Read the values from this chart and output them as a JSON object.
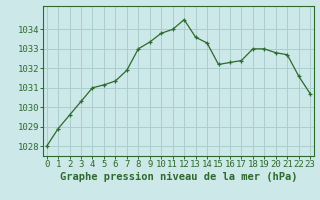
{
  "x": [
    0,
    1,
    2,
    3,
    4,
    5,
    6,
    7,
    8,
    9,
    10,
    11,
    12,
    13,
    14,
    15,
    16,
    17,
    18,
    19,
    20,
    21,
    22,
    23
  ],
  "y": [
    1028.0,
    1028.9,
    1029.6,
    1030.3,
    1031.0,
    1031.15,
    1031.35,
    1031.9,
    1033.0,
    1033.35,
    1033.8,
    1034.0,
    1034.5,
    1033.6,
    1033.3,
    1032.2,
    1032.3,
    1032.4,
    1033.0,
    1033.0,
    1032.8,
    1032.7,
    1031.6,
    1030.7
  ],
  "line_color": "#2d6a2d",
  "marker": "+",
  "bg_color": "#cce8e8",
  "grid_color": "#aacece",
  "xlabel": "Graphe pression niveau de la mer (hPa)",
  "xlabel_fontsize": 7.5,
  "ylabel_ticks": [
    1028,
    1029,
    1030,
    1031,
    1032,
    1033,
    1034
  ],
  "xticks": [
    0,
    1,
    2,
    3,
    4,
    5,
    6,
    7,
    8,
    9,
    10,
    11,
    12,
    13,
    14,
    15,
    16,
    17,
    18,
    19,
    20,
    21,
    22,
    23
  ],
  "ylim": [
    1027.5,
    1035.2
  ],
  "xlim": [
    -0.3,
    23.3
  ],
  "tick_fontsize": 6.5,
  "axis_color": "#2d6a2d",
  "tick_color": "#2d6a2d",
  "label_color": "#2d6a2d",
  "spine_color": "#2d6a2d"
}
